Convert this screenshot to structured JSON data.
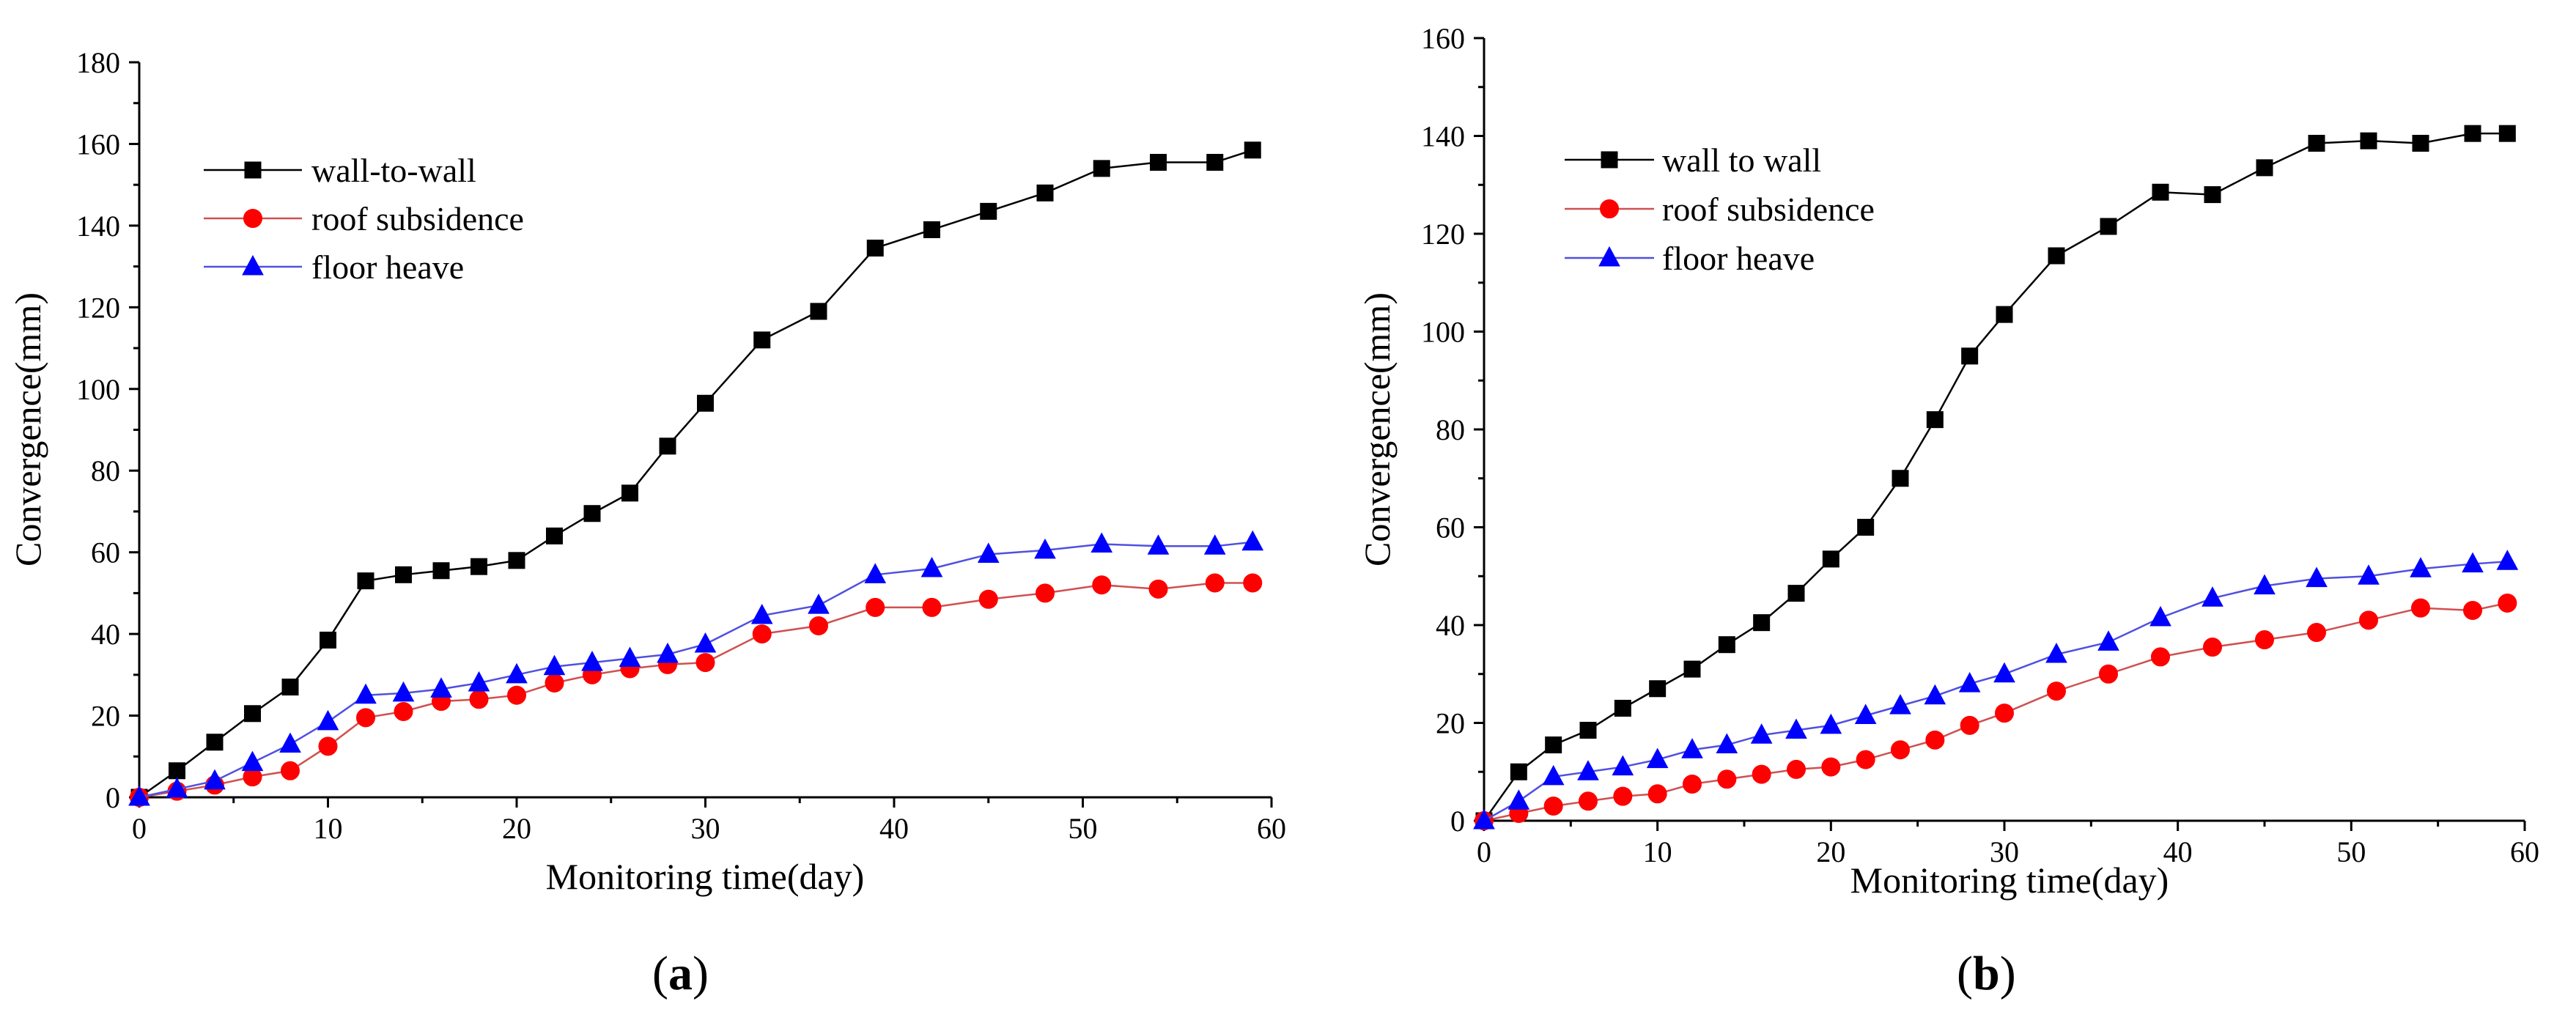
{
  "colors": {
    "wall": "#000000",
    "roof": "#ff0000",
    "floor": "#0000ff",
    "roof_line": "#d05050",
    "floor_line": "#5050e0"
  },
  "chart_data": [
    {
      "panel": "(a)",
      "panel_parts": {
        "open": "(",
        "letter": "a",
        "close": ")"
      },
      "type": "line",
      "xlabel": "Monitoring time(day)",
      "ylabel": "Convergence(mm)",
      "xlim": [
        0,
        60
      ],
      "ylim": [
        0,
        180
      ],
      "xticks": [
        0,
        10,
        20,
        30,
        40,
        50,
        60
      ],
      "yticks": [
        0,
        20,
        40,
        60,
        80,
        100,
        120,
        140,
        160,
        180
      ],
      "legend_position": "top-left",
      "series": [
        {
          "name": "wall-to-wall",
          "marker": "square",
          "color_key": "wall",
          "x": [
            0,
            2,
            4,
            6,
            8,
            10,
            12,
            14,
            16,
            18,
            20,
            22,
            24,
            26,
            28,
            30,
            33,
            36,
            39,
            42,
            45,
            48,
            51,
            54,
            57,
            59
          ],
          "y": [
            0,
            6.5,
            13.5,
            20.5,
            27,
            38.5,
            53,
            54.5,
            55.5,
            56.5,
            58,
            64,
            69.5,
            74.5,
            86,
            96.5,
            112,
            119,
            134.5,
            139,
            143.5,
            148,
            154,
            155.5,
            155.5,
            158.5
          ]
        },
        {
          "name": "roof subsidence",
          "marker": "circle",
          "color_key": "roof",
          "x": [
            0,
            2,
            4,
            6,
            8,
            10,
            12,
            14,
            16,
            18,
            20,
            22,
            24,
            26,
            28,
            30,
            33,
            36,
            39,
            42,
            45,
            48,
            51,
            54,
            57,
            59
          ],
          "y": [
            0,
            1.5,
            3,
            5,
            6.5,
            12.5,
            19.5,
            21,
            23.5,
            24,
            25,
            28,
            30,
            31.5,
            32.5,
            33,
            40,
            42,
            46.5,
            46.5,
            48.5,
            50,
            52,
            51,
            52.5,
            52.5
          ]
        },
        {
          "name": "floor heave",
          "marker": "triangle",
          "color_key": "floor",
          "x": [
            0,
            2,
            4,
            6,
            8,
            10,
            12,
            14,
            16,
            18,
            20,
            22,
            24,
            26,
            28,
            30,
            33,
            36,
            39,
            42,
            45,
            48,
            51,
            54,
            57,
            59
          ],
          "y": [
            0,
            2,
            4,
            8.5,
            13,
            18.5,
            25,
            25.5,
            26.5,
            28,
            30,
            32,
            33,
            34,
            35,
            37.5,
            44.5,
            47,
            54.5,
            56,
            59.5,
            60.5,
            62,
            61.5,
            61.5,
            62.5
          ]
        }
      ]
    },
    {
      "panel": "(b)",
      "panel_parts": {
        "open": "(",
        "letter": "b",
        "close": ")"
      },
      "type": "line",
      "xlabel": "Monitoring time(day)",
      "ylabel": "Convergence(mm)",
      "xlim": [
        0,
        60
      ],
      "ylim": [
        0,
        160
      ],
      "xticks": [
        0,
        10,
        20,
        30,
        40,
        50,
        60
      ],
      "yticks": [
        0,
        20,
        40,
        60,
        80,
        100,
        120,
        140,
        160
      ],
      "legend_position": "top-left",
      "series": [
        {
          "name": "wall to wall",
          "marker": "square",
          "color_key": "wall",
          "x": [
            0,
            2,
            4,
            6,
            8,
            10,
            12,
            14,
            16,
            18,
            20,
            22,
            24,
            26,
            28,
            30,
            33,
            36,
            39,
            42,
            45,
            48,
            51,
            54,
            57,
            59
          ],
          "y": [
            0,
            10,
            15.5,
            18.5,
            23,
            27,
            31,
            36,
            40.5,
            46.5,
            53.5,
            60,
            70,
            82,
            95,
            103.5,
            115.5,
            121.5,
            128.5,
            128,
            133.5,
            138.5,
            139,
            138.5,
            140.5,
            140.5
          ]
        },
        {
          "name": "roof subsidence",
          "marker": "circle",
          "color_key": "roof",
          "x": [
            0,
            2,
            4,
            6,
            8,
            10,
            12,
            14,
            16,
            18,
            20,
            22,
            24,
            26,
            28,
            30,
            33,
            36,
            39,
            42,
            45,
            48,
            51,
            54,
            57,
            59
          ],
          "y": [
            0,
            1.5,
            3,
            4,
            5,
            5.5,
            7.5,
            8.5,
            9.5,
            10.5,
            11,
            12.5,
            14.5,
            16.5,
            19.5,
            22,
            26.5,
            30,
            33.5,
            35.5,
            37,
            38.5,
            41,
            43.5,
            43,
            44.5
          ]
        },
        {
          "name": "floor heave",
          "marker": "triangle",
          "color_key": "floor",
          "x": [
            0,
            2,
            4,
            6,
            8,
            10,
            12,
            14,
            16,
            18,
            20,
            22,
            24,
            26,
            28,
            30,
            33,
            36,
            39,
            42,
            45,
            48,
            51,
            54,
            57,
            59
          ],
          "y": [
            0,
            4,
            9,
            10,
            11,
            12.5,
            14.5,
            15.5,
            17.5,
            18.5,
            19.5,
            21.5,
            23.5,
            25.5,
            28,
            30,
            34,
            36.5,
            41.5,
            45.5,
            48,
            49.5,
            50,
            51.5,
            52.5,
            53
          ]
        }
      ]
    }
  ]
}
